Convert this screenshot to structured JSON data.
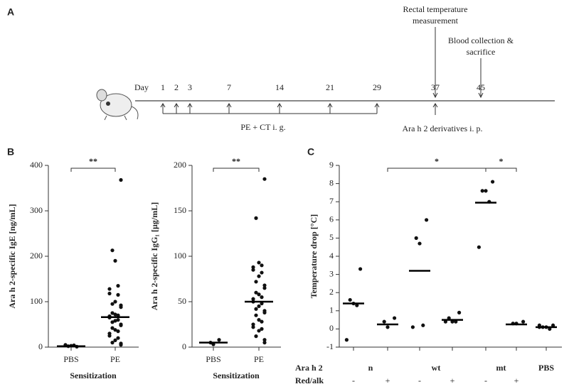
{
  "panel_labels": [
    "A",
    "B",
    "C"
  ],
  "timeline": {
    "day_label": "Day",
    "days": [
      1,
      2,
      3,
      7,
      14,
      21,
      29,
      37,
      45
    ],
    "sensitization": "PE + CT i. g.",
    "challenge": "Ara h 2 derivatives i. p.",
    "measurement": [
      "Rectal temperature",
      "measurement"
    ],
    "end": [
      "Blood collection &",
      "sacrifice"
    ]
  },
  "chart_data": [
    {
      "type": "strip",
      "y_label": "Ara h 2-specific IgE [ng/mL]",
      "x_label": "Sensitization",
      "categories": [
        "PBS",
        "PE"
      ],
      "ylim": [
        0,
        400
      ],
      "yticks": [
        0,
        100,
        200,
        300,
        400
      ],
      "points": [
        [
          1,
          2,
          3,
          4,
          5
        ],
        [
          368,
          213,
          190,
          135,
          128,
          118,
          115,
          100,
          95,
          92,
          88,
          75,
          72,
          70,
          68,
          65,
          60,
          58,
          55,
          50,
          48,
          42,
          38,
          35,
          30,
          25,
          20,
          15,
          10,
          8,
          5
        ]
      ],
      "means": [
        2,
        66
      ],
      "significance": [
        {
          "from": 0,
          "to": 1,
          "label": "**"
        }
      ]
    },
    {
      "type": "strip",
      "y_label": "Ara h 2-specific IgG₁ [µg/mL]",
      "x_label": "Sensitization",
      "categories": [
        "PBS",
        "PE"
      ],
      "ylim": [
        0,
        200
      ],
      "yticks": [
        0,
        50,
        100,
        150,
        200
      ],
      "points": [
        [
          8,
          5,
          3
        ],
        [
          185,
          142,
          93,
          90,
          88,
          85,
          82,
          78,
          72,
          68,
          65,
          60,
          58,
          55,
          53,
          50,
          48,
          45,
          42,
          40,
          38,
          35,
          30,
          28,
          25,
          22,
          20,
          18,
          12,
          8,
          5
        ]
      ],
      "means": [
        5,
        50
      ],
      "significance": [
        {
          "from": 0,
          "to": 1,
          "label": "**"
        }
      ]
    },
    {
      "type": "strip",
      "y_label": "Temperature drop [°C]",
      "row_labels": [
        "Ara h 2",
        "Red/alk"
      ],
      "ara_h2": [
        "n",
        "wt",
        "mt",
        "PBS"
      ],
      "red_alk": [
        "-",
        "+",
        "-",
        "+",
        "-",
        "+"
      ],
      "ylim": [
        -1,
        9
      ],
      "yticks": [
        -1,
        0,
        1,
        2,
        3,
        4,
        5,
        6,
        7,
        8,
        9
      ],
      "points": [
        [
          3.3,
          1.6,
          1.4,
          1.3,
          -0.6
        ],
        [
          0.6,
          0.4,
          0.1
        ],
        [
          6.0,
          5.0,
          4.7,
          0.2,
          0.1
        ],
        [
          0.9,
          0.6,
          0.4,
          0.4,
          0.4
        ],
        [
          8.1,
          7.6,
          7.6,
          7.0,
          4.5
        ],
        [
          0.4,
          0.3,
          0.3
        ],
        [
          0.2,
          0.1,
          0.1,
          0.0,
          0.2,
          0.1
        ]
      ],
      "means": [
        1.4,
        0.25,
        3.2,
        0.5,
        6.95,
        0.25,
        0.1
      ],
      "significance": [
        {
          "from": 1,
          "to": 4,
          "label": "*"
        },
        {
          "from": 4,
          "to": 5,
          "label": "*"
        }
      ]
    }
  ]
}
